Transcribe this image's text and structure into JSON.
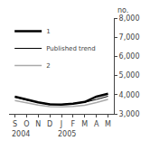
{
  "chart_data": {
    "type": "line",
    "ylabel": "no.",
    "categories": [
      "S",
      "O",
      "N",
      "D",
      "J",
      "F",
      "M",
      "A",
      "M"
    ],
    "series": [
      {
        "name": "1",
        "color": "#000000",
        "values": [
          3900,
          3750,
          3600,
          3500,
          3480,
          3530,
          3620,
          3900,
          4050
        ]
      },
      {
        "name": "Published trend",
        "color": "#000000",
        "values": [
          3880,
          3720,
          3600,
          3510,
          3490,
          3540,
          3600,
          3750,
          3920
        ]
      },
      {
        "name": "2",
        "color": "#aaaaaa",
        "values": [
          3700,
          3580,
          3460,
          3380,
          3360,
          3390,
          3450,
          3590,
          3750
        ]
      }
    ],
    "annotations": [
      {
        "text": "2004",
        "x": 0.5
      },
      {
        "text": "2005",
        "x": 4.5
      }
    ],
    "ylim": [
      3000,
      8000
    ],
    "yticks": [
      {
        "value": 3000,
        "label": "3,000"
      },
      {
        "value": 4000,
        "label": "4,000"
      },
      {
        "value": 5000,
        "label": "5,000"
      },
      {
        "value": 6000,
        "label": "6,000"
      },
      {
        "value": 7000,
        "label": "7,000"
      },
      {
        "value": 8000,
        "label": "8,000"
      }
    ],
    "legend": "upper left",
    "grid": false
  }
}
